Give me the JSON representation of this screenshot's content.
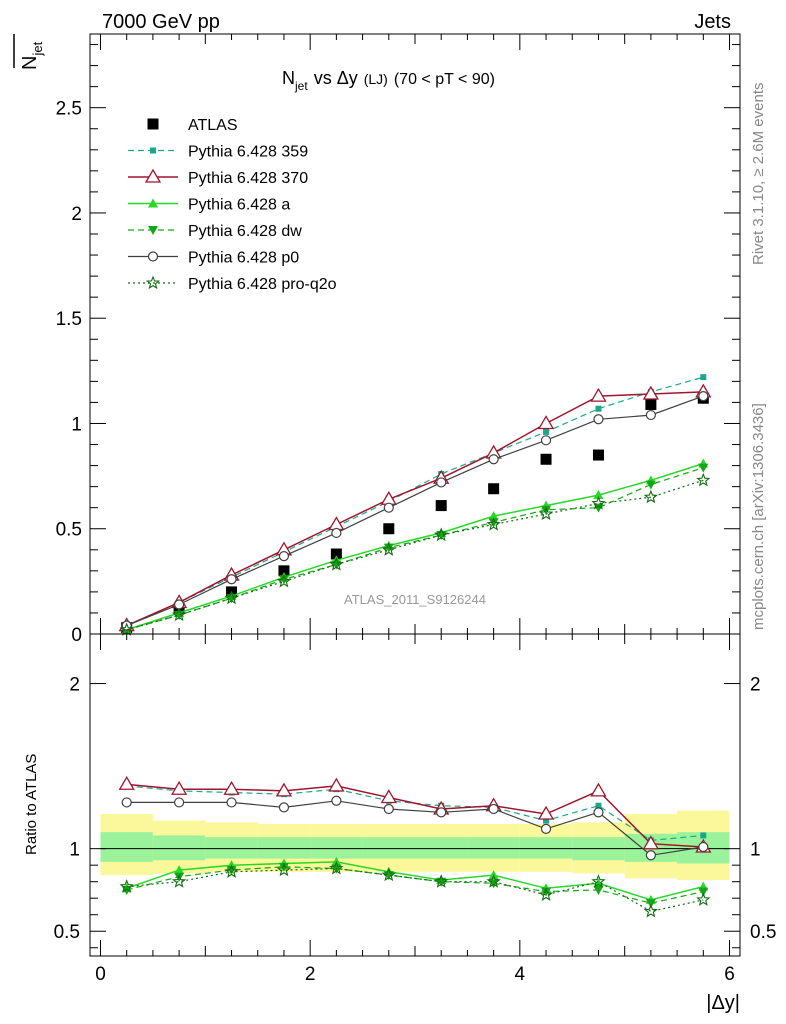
{
  "header": {
    "left": "7000 GeV pp",
    "right": "Jets"
  },
  "side": {
    "rivet": "Rivet 3.1.10, ≥ 2.6M events",
    "mcplots": "mcplots.cern.ch [arXiv:1306.3436]"
  },
  "colors": {
    "atlas": "#000000",
    "p359": "#19a88a",
    "p370": "#a0152d",
    "pa": "#27d827",
    "pdw": "#13a813",
    "pp0": "#404040",
    "pq2o": "#126b12"
  },
  "chart_data": [
    {
      "type": "line",
      "title": {
        "n": "N",
        "sub": "jet",
        "vs": "vs Δy",
        "lj": "(LJ)",
        "range": "(70 < pT <  90)"
      },
      "ylabel": {
        "n": "N",
        "sub": "jet"
      },
      "watermark": "ATLAS_2011_S9126244",
      "ylim": [
        0,
        2.85
      ],
      "xlim": [
        -0.1,
        6.1
      ],
      "yticks": [
        "0",
        "0.5",
        "1",
        "1.5",
        "2",
        "2.5"
      ],
      "x": [
        0.25,
        0.75,
        1.25,
        1.75,
        2.25,
        2.75,
        3.25,
        3.75,
        4.25,
        4.75,
        5.25,
        5.75
      ],
      "legend_placement": "top-left",
      "series": [
        {
          "name": "ATLAS",
          "style": "data",
          "values": [
            0.03,
            0.12,
            0.2,
            0.3,
            0.38,
            0.5,
            0.61,
            0.69,
            0.83,
            0.85,
            1.09,
            1.12
          ]
        },
        {
          "name": "Pythia 6.428 359",
          "style": "p359",
          "values": [
            0.04,
            0.15,
            0.27,
            0.39,
            0.51,
            0.63,
            0.76,
            0.86,
            0.96,
            1.07,
            1.15,
            1.22
          ]
        },
        {
          "name": "Pythia 6.428 370",
          "style": "p370",
          "values": [
            0.04,
            0.15,
            0.28,
            0.4,
            0.52,
            0.64,
            0.74,
            0.86,
            1.0,
            1.13,
            1.14,
            1.15
          ]
        },
        {
          "name": "Pythia 6.428 a",
          "style": "pa",
          "values": [
            0.02,
            0.1,
            0.18,
            0.27,
            0.35,
            0.42,
            0.48,
            0.56,
            0.61,
            0.66,
            0.73,
            0.81
          ]
        },
        {
          "name": "Pythia 6.428 dw",
          "style": "pdw",
          "values": [
            0.02,
            0.09,
            0.17,
            0.26,
            0.33,
            0.41,
            0.47,
            0.53,
            0.59,
            0.6,
            0.71,
            0.79
          ]
        },
        {
          "name": "Pythia 6.428 p0",
          "style": "pp0",
          "values": [
            0.04,
            0.14,
            0.26,
            0.37,
            0.48,
            0.6,
            0.72,
            0.83,
            0.92,
            1.02,
            1.04,
            1.13
          ]
        },
        {
          "name": "Pythia 6.428 pro-q2o",
          "style": "pq2o",
          "values": [
            0.02,
            0.09,
            0.17,
            0.25,
            0.33,
            0.4,
            0.47,
            0.52,
            0.57,
            0.62,
            0.65,
            0.73
          ]
        }
      ]
    },
    {
      "type": "line",
      "ylabel": "Ratio to ATLAS",
      "xlabel": "|Δy|",
      "ylim": [
        0.35,
        2.3
      ],
      "xlim": [
        -0.1,
        6.1
      ],
      "yticks": [
        "0.5",
        "1",
        "2"
      ],
      "xticks": [
        "0",
        "2",
        "4",
        "6"
      ],
      "x": [
        0.25,
        0.75,
        1.25,
        1.75,
        2.25,
        2.75,
        3.25,
        3.75,
        4.25,
        4.75,
        5.25,
        5.75
      ],
      "band_edges": [
        0,
        0.5,
        1,
        1.5,
        2,
        2.5,
        3,
        3.5,
        4,
        4.5,
        5,
        5.5,
        6
      ],
      "band_yellow": [
        [
          0.84,
          1.21
        ],
        [
          0.85,
          1.17
        ],
        [
          0.86,
          1.16
        ],
        [
          0.86,
          1.15
        ],
        [
          0.86,
          1.15
        ],
        [
          0.86,
          1.15
        ],
        [
          0.86,
          1.15
        ],
        [
          0.86,
          1.15
        ],
        [
          0.86,
          1.15
        ],
        [
          0.85,
          1.16
        ],
        [
          0.82,
          1.21
        ],
        [
          0.81,
          1.23
        ]
      ],
      "band_green": [
        [
          0.92,
          1.1
        ],
        [
          0.93,
          1.08
        ],
        [
          0.94,
          1.07
        ],
        [
          0.94,
          1.07
        ],
        [
          0.94,
          1.07
        ],
        [
          0.94,
          1.07
        ],
        [
          0.94,
          1.07
        ],
        [
          0.94,
          1.07
        ],
        [
          0.94,
          1.07
        ],
        [
          0.93,
          1.07
        ],
        [
          0.92,
          1.09
        ],
        [
          0.91,
          1.1
        ]
      ],
      "series": [
        {
          "name": "Pythia 6.428 359",
          "style": "p359",
          "values": [
            1.38,
            1.35,
            1.34,
            1.33,
            1.36,
            1.29,
            1.26,
            1.25,
            1.17,
            1.26,
            1.05,
            1.08
          ]
        },
        {
          "name": "Pythia 6.428 370",
          "style": "p370",
          "values": [
            1.39,
            1.36,
            1.36,
            1.35,
            1.38,
            1.31,
            1.24,
            1.26,
            1.21,
            1.35,
            1.03,
            1.01
          ]
        },
        {
          "name": "Pythia 6.428 a",
          "style": "pa",
          "values": [
            0.76,
            0.87,
            0.9,
            0.91,
            0.92,
            0.86,
            0.81,
            0.84,
            0.76,
            0.79,
            0.69,
            0.77
          ]
        },
        {
          "name": "Pythia 6.428 dw",
          "style": "pdw",
          "values": [
            0.75,
            0.83,
            0.87,
            0.89,
            0.88,
            0.84,
            0.8,
            0.79,
            0.74,
            0.75,
            0.67,
            0.74
          ]
        },
        {
          "name": "Pythia 6.428 p0",
          "style": "pp0",
          "values": [
            1.28,
            1.28,
            1.28,
            1.25,
            1.29,
            1.24,
            1.22,
            1.24,
            1.12,
            1.22,
            0.96,
            1.01
          ]
        },
        {
          "name": "Pythia 6.428 pro-q2o",
          "style": "pq2o",
          "values": [
            0.77,
            0.8,
            0.86,
            0.87,
            0.88,
            0.84,
            0.8,
            0.8,
            0.72,
            0.8,
            0.62,
            0.69
          ]
        }
      ]
    }
  ]
}
